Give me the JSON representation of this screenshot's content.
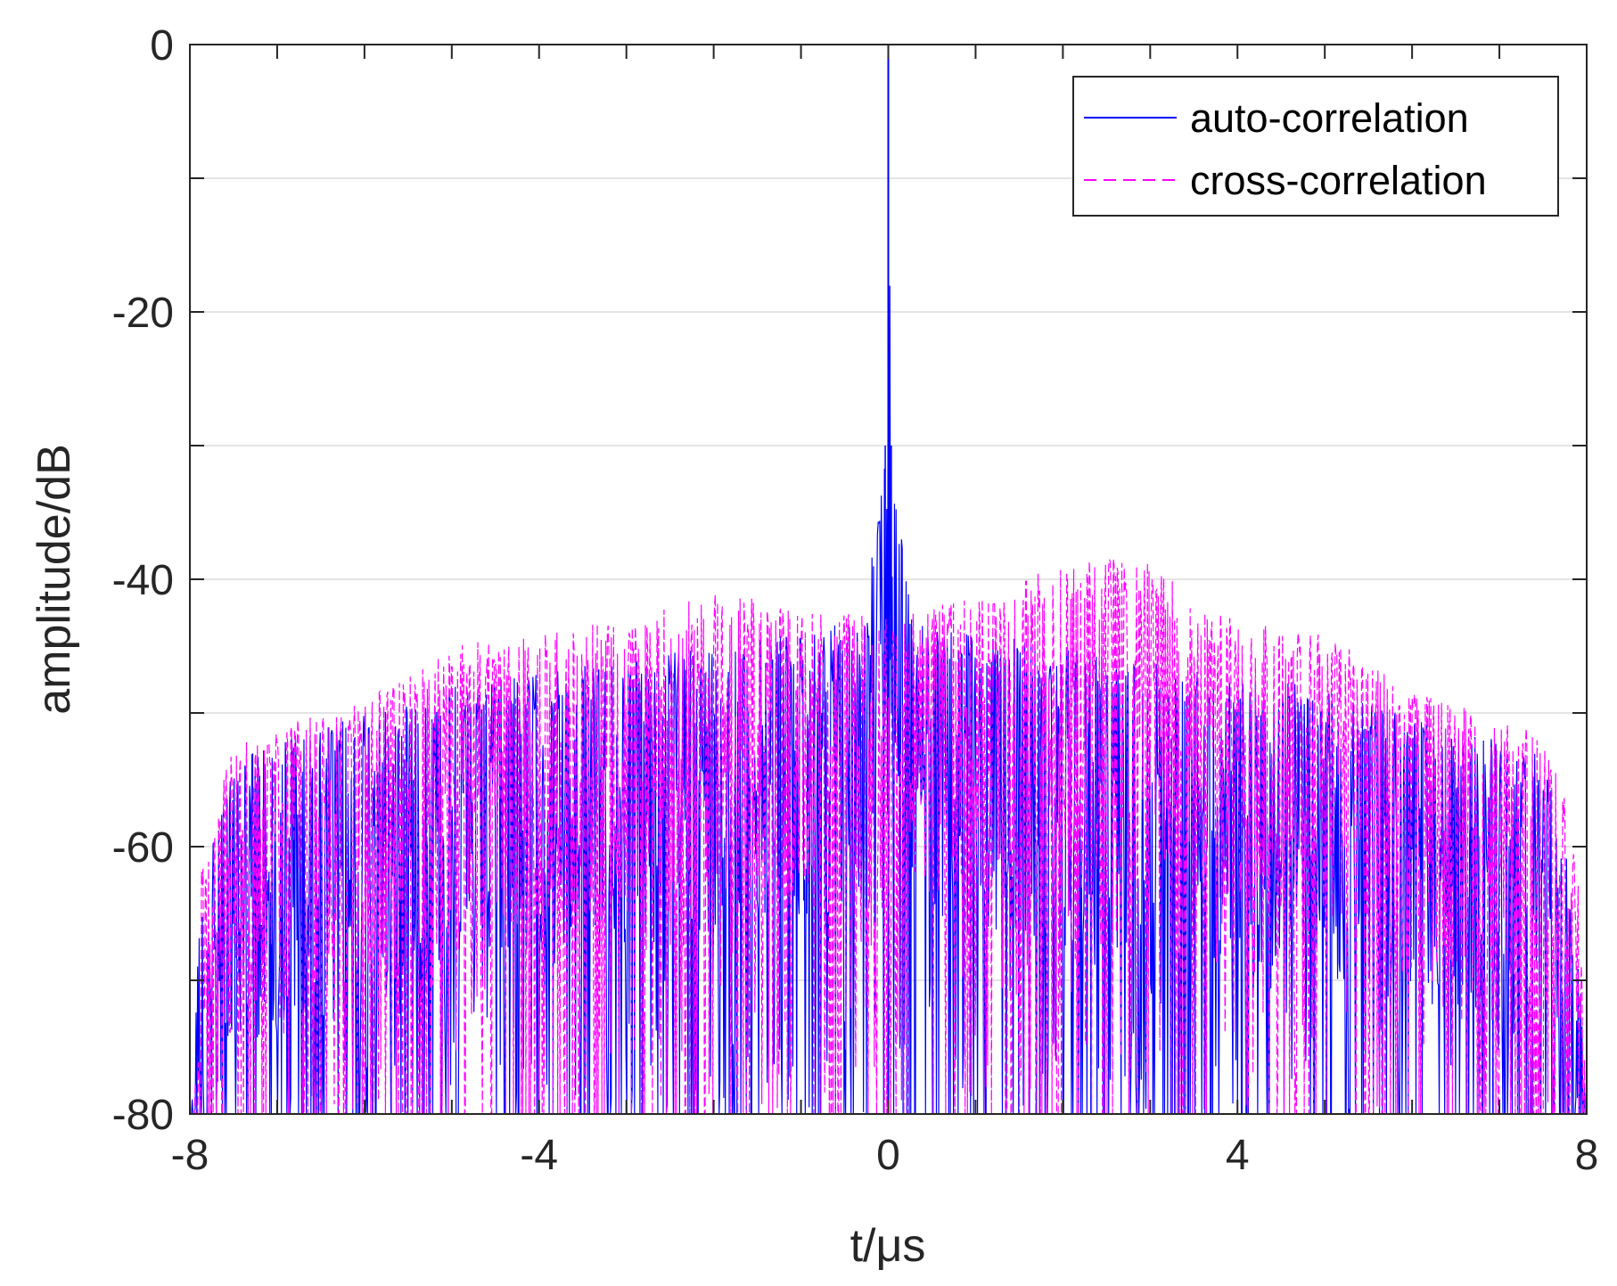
{
  "chart_data": {
    "type": "line",
    "xlabel": "t/μs",
    "ylabel": "amplitude/dB",
    "xlim": [
      -8,
      8
    ],
    "ylim": [
      -80,
      0
    ],
    "xticks": [
      -8,
      -4,
      0,
      4,
      8
    ],
    "yticks": [
      0,
      -20,
      -40,
      -60,
      -80
    ],
    "grid": "horizontal",
    "legend_position": "top-right",
    "series": [
      {
        "name": "auto-correlation",
        "color": "#0000ff",
        "style": "solid",
        "points": [
          [
            -8.0,
            -80
          ],
          [
            -7.9,
            -66
          ],
          [
            -7.8,
            -62
          ],
          [
            -7.7,
            -58
          ],
          [
            -7.6,
            -55
          ],
          [
            -7.5,
            -54
          ],
          [
            -7.4,
            -53
          ],
          [
            -7.0,
            -52
          ],
          [
            -6.5,
            -51
          ],
          [
            -6.0,
            -50
          ],
          [
            -5.5,
            -49
          ],
          [
            -5.0,
            -48
          ],
          [
            -4.0,
            -47
          ],
          [
            -3.0,
            -46
          ],
          [
            -2.0,
            -45
          ],
          [
            -1.0,
            -44
          ],
          [
            -0.3,
            -43
          ],
          [
            -0.1,
            -34
          ],
          [
            -0.03,
            -30
          ],
          [
            0.0,
            0
          ],
          [
            0.03,
            -30
          ],
          [
            0.1,
            -34
          ],
          [
            0.3,
            -43
          ],
          [
            1.0,
            -44
          ],
          [
            2.0,
            -45
          ],
          [
            3.0,
            -46
          ],
          [
            4.0,
            -47
          ],
          [
            5.0,
            -48
          ],
          [
            5.5,
            -49
          ],
          [
            6.0,
            -50
          ],
          [
            6.5,
            -51
          ],
          [
            7.0,
            -52
          ],
          [
            7.4,
            -53
          ],
          [
            7.5,
            -54
          ],
          [
            7.6,
            -55
          ],
          [
            7.7,
            -58
          ],
          [
            7.8,
            -62
          ],
          [
            7.9,
            -66
          ],
          [
            8.0,
            -80
          ]
        ]
      },
      {
        "name": "cross-correlation",
        "color": "#ff00ff",
        "style": "dashed",
        "points": [
          [
            -8.0,
            -80
          ],
          [
            -7.9,
            -62
          ],
          [
            -7.5,
            -52
          ],
          [
            -7.0,
            -51
          ],
          [
            -6.5,
            -50
          ],
          [
            -6.0,
            -49
          ],
          [
            -5.5,
            -47
          ],
          [
            -5.0,
            -45
          ],
          [
            -4.0,
            -44
          ],
          [
            -3.0,
            -43
          ],
          [
            -2.0,
            -41
          ],
          [
            -1.0,
            -42
          ],
          [
            0.0,
            -43
          ],
          [
            1.0,
            -41
          ],
          [
            1.5,
            -40
          ],
          [
            2.0,
            -39
          ],
          [
            2.8,
            -38
          ],
          [
            3.5,
            -41
          ],
          [
            4.0,
            -43
          ],
          [
            5.0,
            -44
          ],
          [
            5.5,
            -46
          ],
          [
            6.0,
            -48
          ],
          [
            6.5,
            -49
          ],
          [
            7.0,
            -50
          ],
          [
            7.3,
            -51
          ],
          [
            7.6,
            -53
          ],
          [
            7.9,
            -60
          ],
          [
            8.0,
            -80
          ]
        ]
      }
    ]
  }
}
